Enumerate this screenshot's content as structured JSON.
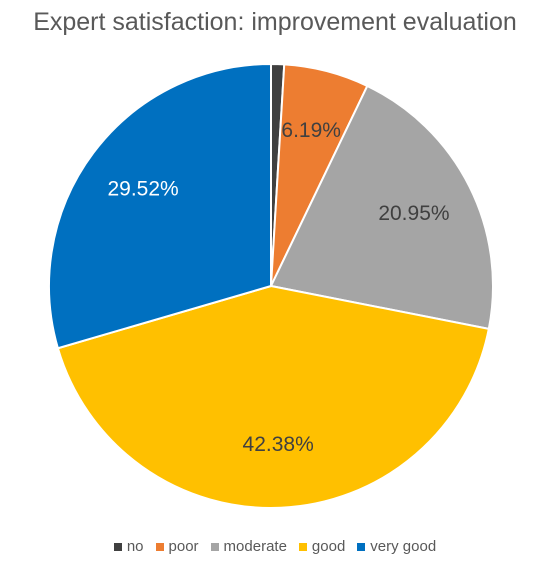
{
  "chart_data": {
    "type": "pie",
    "title": "Expert satisfaction: improvement evaluation",
    "categories": [
      "no",
      "poor",
      "moderate",
      "good",
      "very good"
    ],
    "values": [
      0.95,
      6.19,
      20.95,
      42.38,
      29.52
    ],
    "data_labels": [
      "",
      "6.19%",
      "20.95%",
      "42.38%",
      "29.52%"
    ],
    "colors": [
      "#404040",
      "#ED7D31",
      "#A5A5A5",
      "#FFC000",
      "#0070C0"
    ],
    "label_colors": [
      "#404040",
      "#404040",
      "#404040",
      "#404040",
      "#ffffff"
    ],
    "legend_position": "bottom"
  }
}
